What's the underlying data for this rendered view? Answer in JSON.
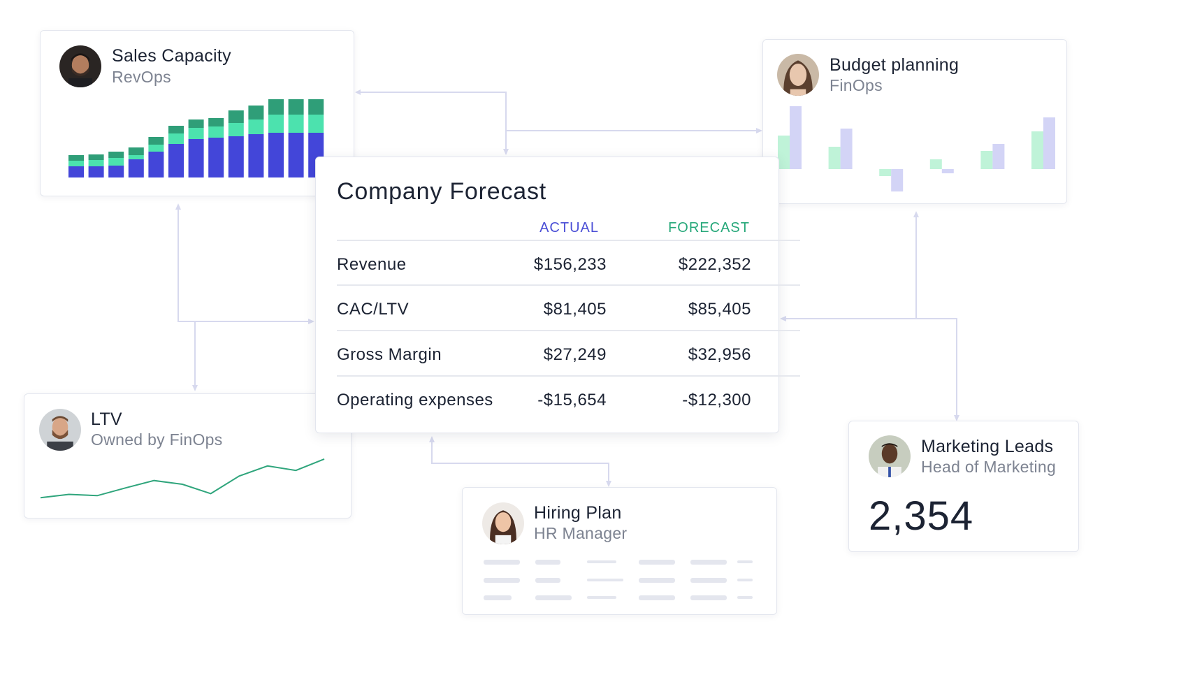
{
  "sales_capacity": {
    "title": "Sales Capacity",
    "subtitle": "RevOps",
    "avatar": "man-beard-avatar",
    "colors": {
      "base": "#4346d9",
      "mid": "#4ce2ae",
      "top": "#2f9e78"
    },
    "bars": [
      {
        "base": 16,
        "mid": 8,
        "top": 8
      },
      {
        "base": 16,
        "mid": 9,
        "top": 8
      },
      {
        "base": 17,
        "mid": 11,
        "top": 9
      },
      {
        "base": 26,
        "mid": 6,
        "top": 11
      },
      {
        "base": 37,
        "mid": 10,
        "top": 11
      },
      {
        "base": 48,
        "mid": 15,
        "top": 11
      },
      {
        "base": 55,
        "mid": 16,
        "top": 12
      },
      {
        "base": 57,
        "mid": 16,
        "top": 12
      },
      {
        "base": 59,
        "mid": 19,
        "top": 18
      },
      {
        "base": 62,
        "mid": 21,
        "top": 20
      },
      {
        "base": 64,
        "mid": 26,
        "top": 22
      },
      {
        "base": 64,
        "mid": 26,
        "top": 22
      },
      {
        "base": 64,
        "mid": 26,
        "top": 22
      }
    ]
  },
  "budget_planning": {
    "title": "Budget planning",
    "subtitle": "FinOps",
    "avatar": "woman-avatar",
    "colors": {
      "a": "#bff3d8",
      "b": "#d3d4f6"
    },
    "groups": [
      {
        "a": 48,
        "b": 90
      },
      {
        "a": 32,
        "b": 58
      },
      {
        "a": -10,
        "b": -32
      },
      {
        "a": 14,
        "b": -6
      },
      {
        "a": 26,
        "b": 36
      },
      {
        "a": 54,
        "b": 74
      }
    ]
  },
  "forecast": {
    "title": "Company Forecast",
    "col_actual": "ACTUAL",
    "col_forecast": "FORECAST",
    "colors": {
      "actual": "#4b4fd6",
      "forecast": "#27a87a"
    },
    "rows": [
      {
        "label": "Revenue",
        "actual": "$156,233",
        "forecast": "$222,352"
      },
      {
        "label": "CAC/LTV",
        "actual": "$81,405",
        "forecast": "$85,405"
      },
      {
        "label": "Gross Margin",
        "actual": "$27,249",
        "forecast": "$32,956"
      },
      {
        "label": "Operating expenses",
        "actual": "-$15,654",
        "forecast": "-$12,300"
      }
    ]
  },
  "ltv": {
    "title": "LTV",
    "subtitle": "Owned by FinOps",
    "avatar": "man-bearded-avatar",
    "line_color": "#2fa57c",
    "series": [
      10,
      18,
      15,
      34,
      52,
      43,
      20,
      63,
      88,
      77,
      105
    ]
  },
  "hiring": {
    "title": "Hiring Plan",
    "subtitle": "HR Manager",
    "avatar": "woman-smiling-avatar"
  },
  "marketing": {
    "title": "Marketing Leads",
    "subtitle": "Head of Marketing",
    "avatar": "man-smiling-avatar",
    "value": "2,354"
  },
  "connector_color": "#d7d9ee"
}
